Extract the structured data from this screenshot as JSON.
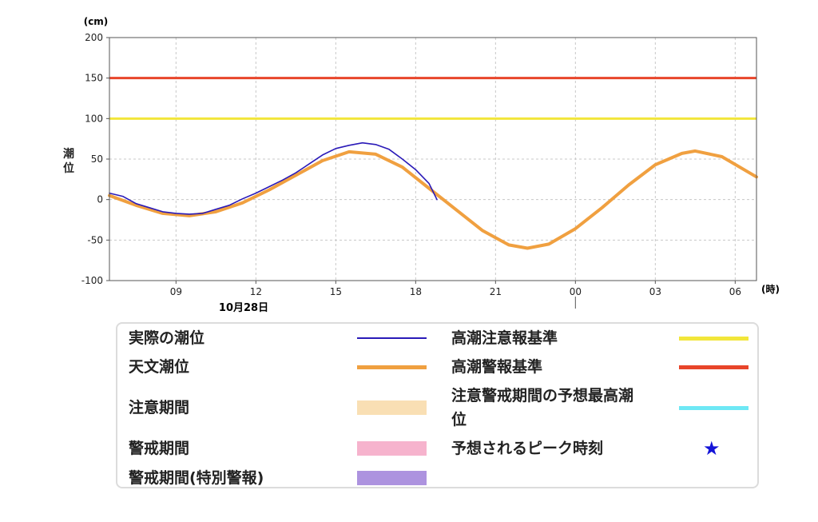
{
  "chart_data": {
    "type": "line",
    "y_unit": "(cm)",
    "x_unit": "(時)",
    "ylabel": "潮位",
    "ylim": [
      -100,
      200
    ],
    "y_ticks": [
      200,
      150,
      100,
      50,
      0,
      -50,
      -100
    ],
    "x_range_hours": [
      6.5,
      30.8
    ],
    "x_ticks": [
      {
        "hour": 9,
        "label": "09"
      },
      {
        "hour": 12,
        "label": "12"
      },
      {
        "hour": 15,
        "label": "15"
      },
      {
        "hour": 18,
        "label": "18"
      },
      {
        "hour": 21,
        "label": "21"
      },
      {
        "hour": 24,
        "label": "00"
      },
      {
        "hour": 27,
        "label": "03"
      },
      {
        "hour": 30,
        "label": "06"
      }
    ],
    "date_label": "10月28日",
    "grid": true,
    "thresholds": [
      {
        "name": "高潮警報基準",
        "value": 150,
        "color": "#e8452a"
      },
      {
        "name": "高潮注意報基準",
        "value": 100,
        "color": "#f2e63a"
      }
    ],
    "series": [
      {
        "name": "天文潮位",
        "color": "#f0a040",
        "points": [
          [
            6.5,
            5
          ],
          [
            7.5,
            -7
          ],
          [
            8.5,
            -17
          ],
          [
            9.5,
            -20
          ],
          [
            10.5,
            -15
          ],
          [
            11.5,
            -4
          ],
          [
            12.5,
            12
          ],
          [
            13.5,
            30
          ],
          [
            14.5,
            48
          ],
          [
            15.5,
            59
          ],
          [
            16.5,
            56
          ],
          [
            17.5,
            40
          ],
          [
            18.5,
            14
          ],
          [
            19.5,
            -12
          ],
          [
            20.5,
            -38
          ],
          [
            21.5,
            -56
          ],
          [
            22.2,
            -60
          ],
          [
            23.0,
            -55
          ],
          [
            24.0,
            -36
          ],
          [
            25.0,
            -10
          ],
          [
            26.0,
            18
          ],
          [
            27.0,
            43
          ],
          [
            28.0,
            57
          ],
          [
            28.5,
            60
          ],
          [
            29.5,
            53
          ],
          [
            30.8,
            28
          ]
        ]
      },
      {
        "name": "実際の潮位",
        "color": "#2a1ab8",
        "points": [
          [
            6.5,
            8
          ],
          [
            7.0,
            4
          ],
          [
            7.5,
            -5
          ],
          [
            8.0,
            -10
          ],
          [
            8.5,
            -15
          ],
          [
            9.0,
            -17
          ],
          [
            9.5,
            -18
          ],
          [
            10.0,
            -17
          ],
          [
            10.5,
            -12
          ],
          [
            11.0,
            -7
          ],
          [
            11.5,
            1
          ],
          [
            12.0,
            8
          ],
          [
            12.5,
            16
          ],
          [
            13.0,
            24
          ],
          [
            13.5,
            33
          ],
          [
            14.0,
            44
          ],
          [
            14.5,
            55
          ],
          [
            15.0,
            63
          ],
          [
            15.5,
            67
          ],
          [
            16.0,
            70
          ],
          [
            16.5,
            68
          ],
          [
            17.0,
            62
          ],
          [
            17.5,
            50
          ],
          [
            18.0,
            37
          ],
          [
            18.5,
            20
          ],
          [
            18.8,
            0
          ]
        ]
      }
    ]
  },
  "legend": {
    "left": [
      {
        "label": "実際の潮位",
        "color": "#2a1ab8",
        "kind": "line"
      },
      {
        "label": "天文潮位",
        "color": "#f0a040",
        "kind": "thick"
      },
      {
        "label": "注意期間",
        "color": "#f9dfb4",
        "kind": "band"
      },
      {
        "label": "警戒期間",
        "color": "#f6b3cd",
        "kind": "band"
      },
      {
        "label": "警戒期間(特別警報)",
        "color": "#ad93df",
        "kind": "band"
      }
    ],
    "right": [
      {
        "label": "高潮注意報基準",
        "color": "#f2e63a",
        "kind": "thick"
      },
      {
        "label": "高潮警報基準",
        "color": "#e8452a",
        "kind": "thick"
      },
      {
        "label": "注意警戒期間の予想最高潮",
        "label2": "位",
        "color": "#6ee8f5",
        "kind": "thick"
      },
      {
        "label": "予想されるピーク時刻",
        "color": "#1414d8",
        "kind": "star"
      }
    ]
  }
}
